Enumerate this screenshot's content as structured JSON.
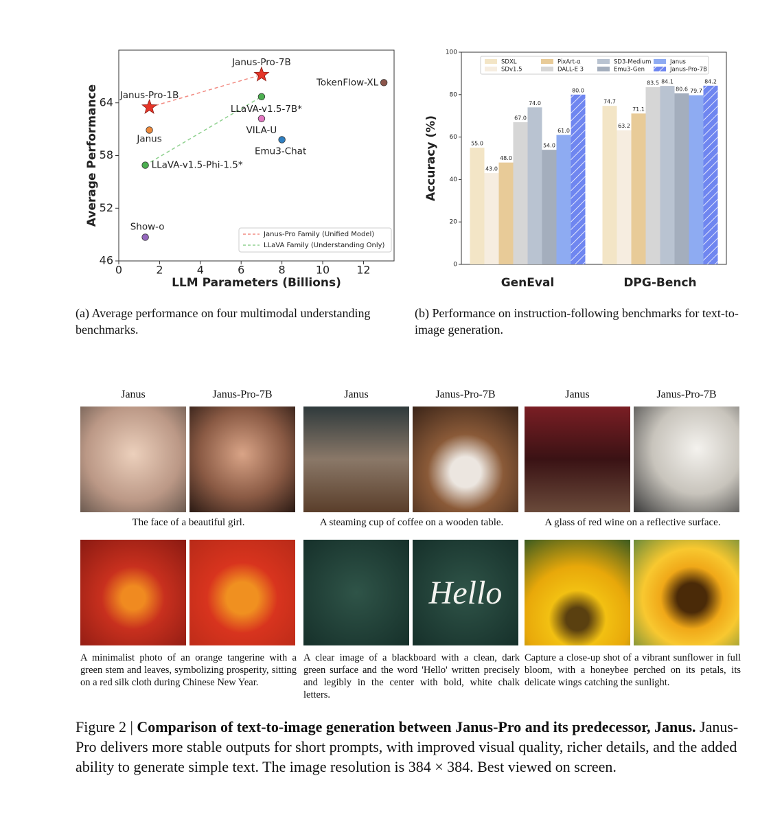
{
  "chart_data": [
    {
      "type": "scatter",
      "xlabel": "LLM Parameters (Billions)",
      "ylabel": "Average Performance",
      "xlim": [
        0,
        13.5
      ],
      "ylim": [
        46,
        70
      ],
      "xticks": [
        0,
        2,
        4,
        6,
        8,
        10,
        12
      ],
      "yticks": [
        46,
        52,
        58,
        64
      ],
      "points": [
        {
          "name": "Janus-Pro-7B",
          "x": 7,
          "y": 67.2,
          "color": "#e53528",
          "marker": "star"
        },
        {
          "name": "Janus-Pro-1B",
          "x": 1.5,
          "y": 63.5,
          "color": "#e53528",
          "marker": "star"
        },
        {
          "name": "Janus",
          "x": 1.5,
          "y": 60.9,
          "color": "#ee8a3c",
          "marker": "circle"
        },
        {
          "name": "LLaVA-v1.5-7B*",
          "x": 7,
          "y": 64.7,
          "color": "#4caf50",
          "marker": "circle"
        },
        {
          "name": "VILA-U",
          "x": 7,
          "y": 62.2,
          "color": "#e377c2",
          "marker": "circle"
        },
        {
          "name": "Emu3-Chat",
          "x": 8,
          "y": 59.8,
          "color": "#2f7fc1",
          "marker": "circle"
        },
        {
          "name": "TokenFlow-XL",
          "x": 13,
          "y": 66.3,
          "color": "#8c564b",
          "marker": "circle"
        },
        {
          "name": "LLaVA-v1.5-Phi-1.5*",
          "x": 1.3,
          "y": 56.9,
          "color": "#4caf50",
          "marker": "circle"
        },
        {
          "name": "Show-o",
          "x": 1.3,
          "y": 48.7,
          "color": "#9467bd",
          "marker": "circle"
        }
      ],
      "series": [
        {
          "name": "Janus-Pro Family (Unified Model)",
          "color": "#f28b82",
          "x": [
            1.5,
            7
          ],
          "y": [
            63.5,
            67.2
          ]
        },
        {
          "name": "LLaVA Family (Understanding Only)",
          "color": "#8fd18f",
          "x": [
            1.3,
            7
          ],
          "y": [
            56.9,
            64.7
          ]
        }
      ],
      "legend": "lower right",
      "caption": "(a) Average performance on four multimodal understanding benchmarks."
    },
    {
      "type": "bar",
      "ylabel": "Accuracy (%)",
      "categories": [
        "GenEval",
        "DPG-Bench"
      ],
      "ylim": [
        0,
        100
      ],
      "yticks": [
        0,
        20,
        40,
        60,
        80,
        100
      ],
      "series": [
        {
          "name": "SDXL",
          "color": "#f3e5c6",
          "values": [
            55,
            74.7
          ],
          "value_labels": [
            "55.0",
            "74.7"
          ]
        },
        {
          "name": "SDv1.5",
          "color": "#f6ede0",
          "values": [
            43,
            63.2
          ],
          "value_labels": [
            "43.0",
            "63.2"
          ]
        },
        {
          "name": "PixArt-α",
          "color": "#e8cb98",
          "values": [
            48,
            71.1
          ],
          "value_labels": [
            "48.0",
            "71.1"
          ]
        },
        {
          "name": "DALL-E 3",
          "color": "#d6d6d6",
          "values": [
            67,
            83.5
          ],
          "value_labels": [
            "67.0",
            "83.5"
          ]
        },
        {
          "name": "SD3-Medium",
          "color": "#b9c3d1",
          "values": [
            74,
            84.1
          ],
          "value_labels": [
            "74.0",
            "84.1"
          ]
        },
        {
          "name": "Emu3-Gen",
          "color": "#a4aebd",
          "values": [
            54,
            80.6
          ],
          "value_labels": [
            "54.0",
            "80.6"
          ]
        },
        {
          "name": "Janus",
          "color": "#8eabf2",
          "values": [
            61,
            79.7
          ],
          "value_labels": [
            "61.0",
            "79.7"
          ]
        },
        {
          "name": "Janus-Pro-7B",
          "color": "#6f86f0",
          "hatch": true,
          "values": [
            80,
            84.2
          ],
          "value_labels": [
            "80.0",
            "84.2"
          ]
        }
      ],
      "legend": "upper center",
      "caption": "(b) Performance on instruction-following benchmarks for text-to-image generation."
    }
  ],
  "image_comparison": {
    "headers": [
      "Janus",
      "Janus-Pro-7B"
    ],
    "prompts": [
      "The face of a beautiful girl.",
      "A steaming cup of coffee on a wooden table.",
      "A glass of red wine on a reflective surface.",
      "A minimalist photo of an orange tangerine with a green stem and leaves, symbolizing prosperity, sitting on a red silk cloth during Chinese New Year.",
      "A clear image of a blackboard with a clean, dark green surface and the word 'Hello' written precisely and legibly in the center with bold, white chalk letters.",
      "Capture a close-up shot of a vibrant sunflower in full bloom, with a honeybee perched on its petals, its delicate wings catching the sunlight."
    ],
    "chalk_text": "Hello"
  },
  "figure_caption": {
    "label": "Figure 2 |",
    "title": "Comparison of text-to-image generation between Janus-Pro and its predecessor, Janus.",
    "body": "Janus-Pro delivers more stable outputs for short prompts, with improved visual quality, richer details, and the added ability to generate simple text. The image resolution is 384 × 384. Best viewed on screen."
  }
}
